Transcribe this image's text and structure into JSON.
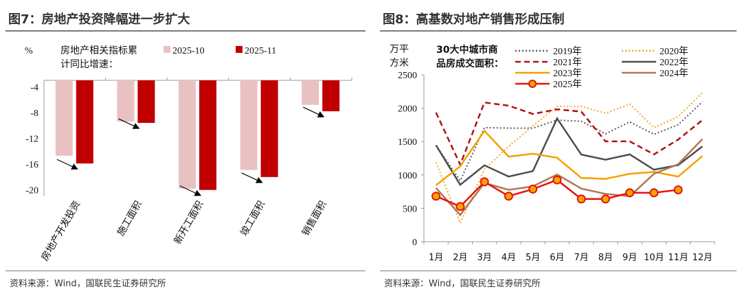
{
  "left": {
    "title": "图7：房地产投资降幅进一步扩大",
    "source": "资料来源：Wind，国联民生证券研究所"
  },
  "right": {
    "title": "图8：高基数对地产销售形成压制",
    "source": "资料来源：Wind，国联民生证券研究所"
  },
  "chart_data": [
    {
      "type": "bar",
      "ylabel": "%",
      "legend_title": "房地产相关指标累计同比增速：",
      "legend_title_lines": [
        "房地产相关指标累",
        "计同比增速："
      ],
      "categories": [
        "房地产开发投资",
        "施工面积",
        "新开工面积",
        "竣工面积",
        "销售面积"
      ],
      "series": [
        {
          "name": "2025-10",
          "color": "#eac1c1",
          "values": [
            -14.7,
            -9.4,
            -19.8,
            -16.9,
            -6.8
          ]
        },
        {
          "name": "2025-11",
          "color": "#c00000",
          "values": [
            -15.9,
            -9.6,
            -20.0,
            -18.0,
            -7.8
          ]
        }
      ],
      "yticks": [
        -4,
        -8,
        -12,
        -16,
        -20
      ],
      "ylim": [
        -21,
        -3
      ],
      "grid": false,
      "legend": "top"
    },
    {
      "type": "line",
      "ylabel": "万平方米",
      "ylabel_lines": [
        "万平",
        "方米"
      ],
      "legend_title": "30大中城市商品房成交面积：",
      "legend_title_lines": [
        "30大中城市商",
        "品房成交面积："
      ],
      "categories": [
        "1月",
        "2月",
        "3月",
        "4月",
        "5月",
        "6月",
        "7月",
        "8月",
        "9月",
        "10月",
        "11月",
        "12月"
      ],
      "yticks": [
        0,
        500,
        1000,
        1500,
        2000,
        2500
      ],
      "ylim": [
        0,
        2500
      ],
      "grid": false,
      "legend": "top",
      "series": [
        {
          "name": "2019年",
          "color": "#595959",
          "style": "dotted",
          "values": [
            1445,
            914,
            1709,
            1702,
            1702,
            1822,
            1805,
            1616,
            1795,
            1610,
            1753,
            2096
          ]
        },
        {
          "name": "2020年",
          "color": "#f5a623",
          "style": "dotted",
          "values": [
            1188,
            281,
            1086,
            1428,
            1736,
            2027,
            2027,
            1925,
            2062,
            1709,
            1873,
            2233
          ]
        },
        {
          "name": "2021年",
          "color": "#b01010",
          "style": "dashed",
          "values": [
            1935,
            1154,
            2086,
            2038,
            1914,
            1983,
            1949,
            1503,
            1503,
            1308,
            1531,
            1822
          ]
        },
        {
          "name": "2022年",
          "color": "#4d4d4d",
          "style": "solid",
          "values": [
            1445,
            853,
            1144,
            976,
            1058,
            1846,
            1305,
            1229,
            1308,
            1079,
            1147,
            1428
          ]
        },
        {
          "name": "2023年",
          "color": "#f5a000",
          "style": "solid",
          "values": [
            846,
            1130,
            1661,
            1274,
            1318,
            1257,
            955,
            942,
            1017,
            1045,
            976,
            1284
          ]
        },
        {
          "name": "2024年",
          "color": "#b07850",
          "style": "solid",
          "values": [
            805,
            400,
            880,
            777,
            829,
            1007,
            795,
            716,
            682,
            1017,
            1161,
            1538
          ]
        },
        {
          "name": "2025年",
          "color": "#e81010",
          "style": "marker",
          "values": [
            682,
            527,
            897,
            682,
            788,
            925,
            640,
            640,
            733,
            733,
            777,
            null
          ]
        }
      ]
    }
  ]
}
